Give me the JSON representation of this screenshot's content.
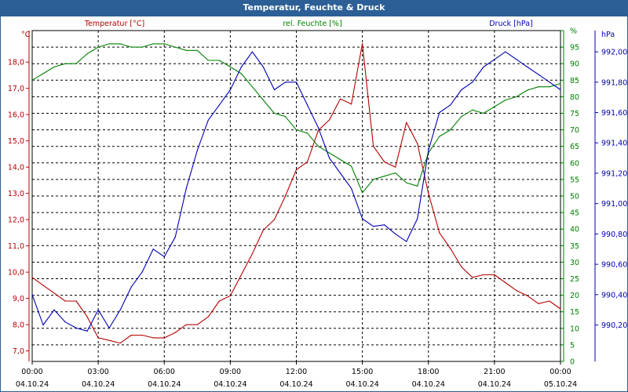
{
  "window": {
    "title": "Temperatur, Feuchte & Druck"
  },
  "colors": {
    "temperature": "#b40000",
    "humidity": "#008000",
    "pressure": "#0000b4",
    "titlebar": "#2b5f96",
    "grid": "#000000"
  },
  "chart_data": {
    "type": "line",
    "title": "Temperatur, Feuchte & Druck",
    "grid": true,
    "x_range_hours": [
      0,
      24
    ],
    "x_tick_hours": [
      0,
      3,
      6,
      9,
      12,
      15,
      18,
      21,
      24
    ],
    "x_tick_labels": [
      {
        "time": "00:00",
        "date": "04.10.24"
      },
      {
        "time": "03:00",
        "date": "04.10.24"
      },
      {
        "time": "06:00",
        "date": "04.10.24"
      },
      {
        "time": "09:00",
        "date": "04.10.24"
      },
      {
        "time": "12:00",
        "date": "04.10.24"
      },
      {
        "time": "15:00",
        "date": "04.10.24"
      },
      {
        "time": "18:00",
        "date": "04.10.24"
      },
      {
        "time": "21:00",
        "date": "04.10.24"
      },
      {
        "time": "00:00",
        "date": "05.10.24"
      }
    ],
    "axes": {
      "left": {
        "unit": "°C",
        "min": 6.6,
        "max": 19.2,
        "ticks": [
          7.0,
          8.0,
          9.0,
          10.0,
          11.0,
          12.0,
          13.0,
          14.0,
          15.0,
          16.0,
          17.0,
          18.0
        ],
        "tick_labels": [
          "7,0",
          "8,0",
          "9,0",
          "10,0",
          "11,0",
          "12,0",
          "13,0",
          "14,0",
          "15,0",
          "16,0",
          "17,0",
          "18,0"
        ]
      },
      "right1": {
        "unit": "%",
        "min": 0,
        "max": 100,
        "ticks": [
          0,
          5,
          10,
          15,
          20,
          25,
          30,
          35,
          40,
          45,
          50,
          55,
          60,
          65,
          70,
          75,
          80,
          85,
          90,
          95,
          100
        ],
        "tick_labels": [
          "0",
          "5",
          "10",
          "15",
          "20",
          "25",
          "30",
          "35",
          "40",
          "45",
          "50",
          "55",
          "60",
          "65",
          "70",
          "75",
          "80",
          "85",
          "90",
          "95",
          "%"
        ]
      },
      "right2": {
        "unit": "hPa",
        "min": 989.96,
        "max": 992.14,
        "ticks": [
          990.2,
          990.4,
          990.6,
          990.8,
          991.0,
          991.2,
          991.4,
          991.6,
          991.8,
          992.0
        ],
        "tick_labels": [
          "990,20",
          "990,40",
          "990,60",
          "990,80",
          "991,00",
          "991,20",
          "991,40",
          "991,60",
          "991,80",
          "992,00"
        ]
      }
    },
    "series": [
      {
        "name": "Temperatur [°C]",
        "axis": "left",
        "color": "#b40000",
        "x": [
          0,
          0.5,
          1,
          1.5,
          2,
          2.5,
          3,
          3.5,
          4,
          4.5,
          5,
          5.5,
          6,
          6.5,
          7,
          7.5,
          8,
          8.5,
          9,
          9.5,
          10,
          10.5,
          11,
          11.5,
          12,
          12.5,
          13,
          13.5,
          14,
          14.5,
          15,
          15.5,
          16,
          16.5,
          17,
          17.5,
          18,
          18.5,
          19,
          19.5,
          20,
          20.5,
          21,
          21.5,
          22,
          22.5,
          23,
          23.5,
          24
        ],
        "y": [
          9.8,
          9.5,
          9.2,
          8.9,
          8.9,
          8.3,
          7.5,
          7.4,
          7.3,
          7.6,
          7.6,
          7.5,
          7.5,
          7.7,
          8.0,
          8.0,
          8.3,
          8.9,
          9.1,
          9.9,
          10.7,
          11.6,
          12.0,
          12.9,
          13.9,
          14.2,
          15.4,
          15.8,
          16.6,
          16.4,
          18.7,
          14.8,
          14.2,
          14.0,
          15.7,
          14.9,
          13.0,
          11.5,
          10.9,
          10.2,
          9.8,
          9.9,
          9.9,
          9.6,
          9.3,
          9.1,
          8.8,
          8.9,
          8.6
        ]
      },
      {
        "name": "rel. Feuchte [%]",
        "axis": "right1",
        "color": "#008000",
        "x": [
          0,
          0.5,
          1,
          1.5,
          2,
          2.5,
          3,
          3.5,
          4,
          4.5,
          5,
          5.5,
          6,
          6.5,
          7,
          7.5,
          8,
          8.5,
          9,
          9.5,
          10,
          10.5,
          11,
          11.5,
          12,
          12.5,
          13,
          13.5,
          14,
          14.5,
          15,
          15.5,
          16,
          16.5,
          17,
          17.5,
          18,
          18.5,
          19,
          19.5,
          20,
          20.5,
          21,
          21.5,
          22,
          22.5,
          23,
          23.5,
          24
        ],
        "y": [
          85,
          87,
          89,
          90,
          90,
          93,
          95,
          96,
          96,
          95,
          95,
          96,
          96,
          95,
          94,
          94,
          91,
          91,
          89,
          87,
          83,
          79,
          75,
          74,
          70,
          69,
          65,
          63,
          61,
          59,
          51,
          55,
          56,
          57,
          54,
          53,
          63,
          68,
          70,
          74,
          76,
          75,
          77,
          79,
          80,
          82,
          83,
          83,
          84
        ]
      },
      {
        "name": "Druck [hPa]",
        "axis": "right2",
        "color": "#0000b4",
        "x": [
          0,
          0.5,
          1,
          1.5,
          2,
          2.5,
          3,
          3.5,
          4,
          4.5,
          5,
          5.5,
          6,
          6.5,
          7,
          7.5,
          8,
          8.5,
          9,
          9.5,
          10,
          10.5,
          11,
          11.5,
          12,
          12.5,
          13,
          13.5,
          14,
          14.5,
          15,
          15.5,
          16,
          16.5,
          17,
          17.5,
          18,
          18.5,
          19,
          19.5,
          20,
          20.5,
          21,
          21.5,
          22,
          22.5,
          23,
          23.5,
          24
        ],
        "y": [
          990.4,
          990.2,
          990.3,
          990.22,
          990.18,
          990.16,
          990.3,
          990.18,
          990.3,
          990.45,
          990.55,
          990.7,
          990.65,
          990.78,
          991.1,
          991.35,
          991.55,
          991.65,
          991.75,
          991.9,
          992.0,
          991.9,
          991.75,
          991.8,
          991.8,
          991.65,
          991.5,
          991.3,
          991.2,
          991.1,
          990.9,
          990.85,
          990.86,
          990.8,
          990.75,
          990.9,
          991.35,
          991.6,
          991.65,
          991.75,
          991.8,
          991.9,
          991.95,
          992.0,
          991.95,
          991.9,
          991.85,
          991.8,
          991.75
        ]
      }
    ]
  }
}
